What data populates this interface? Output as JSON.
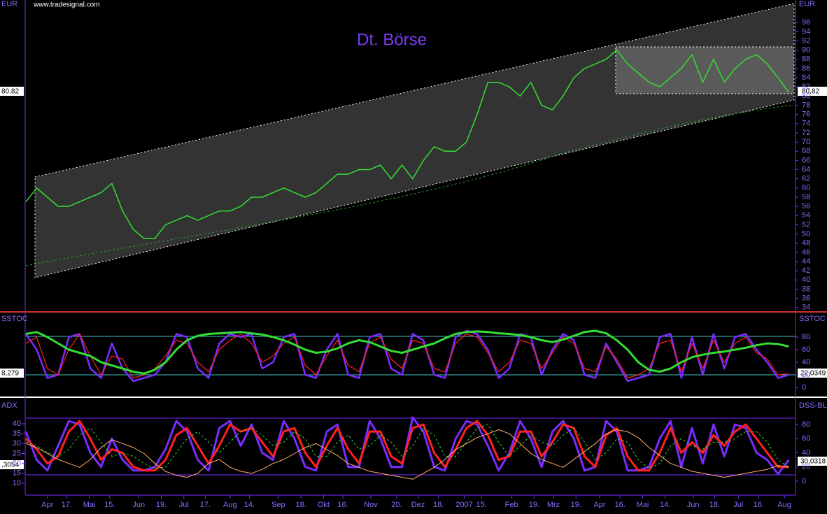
{
  "chart_data": [
    {
      "type": "line",
      "title": "Dt. Börse",
      "source": "www.tradesignal.com",
      "ylabel": "EUR",
      "annotations": [
        "80,82"
      ],
      "x": [
        0,
        1,
        2,
        3,
        4,
        5,
        6,
        7,
        8,
        9,
        10,
        11,
        12,
        13,
        14,
        15,
        16,
        17,
        18,
        19,
        20,
        21,
        22,
        23,
        24,
        25,
        26,
        27,
        28,
        29,
        30,
        31,
        32,
        33,
        34,
        35,
        36,
        37,
        38,
        39,
        40,
        41,
        42,
        43,
        44,
        45,
        46,
        47,
        48,
        49,
        50,
        51,
        52,
        53,
        54,
        55,
        56,
        57,
        58,
        59,
        60,
        61,
        62,
        63,
        64,
        65,
        66,
        67,
        68,
        69,
        70,
        71
      ],
      "xlim": [
        0,
        71.5
      ],
      "xticks": [
        {
          "value": 2.0,
          "label": "Apr"
        },
        {
          "value": 3.8,
          "label": "17."
        },
        {
          "value": 5.9,
          "label": "Mai"
        },
        {
          "value": 7.8,
          "label": "15."
        },
        {
          "value": 10.5,
          "label": "Jun"
        },
        {
          "value": 12.6,
          "label": "19."
        },
        {
          "value": 14.7,
          "label": "Jul"
        },
        {
          "value": 16.7,
          "label": "17."
        },
        {
          "value": 19.0,
          "label": "Aug"
        },
        {
          "value": 20.8,
          "label": "14."
        },
        {
          "value": 23.5,
          "label": "Sep"
        },
        {
          "value": 25.6,
          "label": "18."
        },
        {
          "value": 27.7,
          "label": "Okt"
        },
        {
          "value": 29.5,
          "label": "16."
        },
        {
          "value": 32.1,
          "label": "Nov"
        },
        {
          "value": 34.5,
          "label": "20."
        },
        {
          "value": 36.5,
          "label": "Dez"
        },
        {
          "value": 38.4,
          "label": "18."
        },
        {
          "value": 40.8,
          "label": "2007"
        },
        {
          "value": 42.4,
          "label": "15."
        },
        {
          "value": 45.2,
          "label": "Feb"
        },
        {
          "value": 47.3,
          "label": "19."
        },
        {
          "value": 49.1,
          "label": "Mrz"
        },
        {
          "value": 51.2,
          "label": "19."
        },
        {
          "value": 53.4,
          "label": "Apr"
        },
        {
          "value": 55.3,
          "label": "16."
        },
        {
          "value": 57.4,
          "label": "Mai"
        },
        {
          "value": 59.5,
          "label": "14."
        },
        {
          "value": 62.1,
          "label": "Jun"
        },
        {
          "value": 64.1,
          "label": "18."
        },
        {
          "value": 66.3,
          "label": "Jul"
        },
        {
          "value": 68.2,
          "label": "16."
        },
        {
          "value": 70.6,
          "label": "Aug"
        }
      ],
      "ylim": [
        33.2,
        100.9
      ],
      "yticks": [
        34,
        36,
        38,
        40,
        42,
        44,
        46,
        48,
        50,
        52,
        54,
        56,
        58,
        60,
        62,
        64,
        66,
        68,
        70,
        72,
        74,
        76,
        78,
        80,
        82,
        84,
        86,
        88,
        90,
        92,
        94,
        96
      ],
      "series": [
        {
          "color": "#33dd33",
          "values": [
            57,
            60,
            58,
            56,
            56,
            57,
            58,
            59,
            61,
            55,
            51,
            49,
            49,
            52,
            53,
            54,
            53,
            54,
            55,
            55,
            56,
            58,
            58,
            59,
            60,
            59,
            58,
            59,
            61,
            63,
            63,
            64,
            64,
            65,
            62,
            65,
            62,
            66,
            69,
            68,
            68,
            70,
            76,
            83,
            83,
            82,
            80,
            83,
            78,
            77,
            80,
            84,
            86,
            87,
            88,
            90,
            87,
            85,
            83,
            82,
            84,
            86,
            89,
            83,
            88,
            83,
            86,
            88,
            89,
            87,
            84,
            80.82
          ]
        }
      ]
    },
    {
      "type": "line",
      "ylabel": "SSTOC",
      "annotations": [
        "8,279",
        "22,0349"
      ],
      "ylim": [
        -13.3,
        116.7
      ],
      "yticks": [
        0,
        20,
        40,
        60,
        80
      ],
      "series": [
        {
          "color": "#7a2cff",
          "width": 2.5,
          "values": [
            85,
            60,
            15,
            20,
            80,
            85,
            30,
            15,
            70,
            30,
            10,
            15,
            20,
            40,
            85,
            80,
            30,
            15,
            70,
            85,
            80,
            85,
            30,
            40,
            80,
            85,
            20,
            15,
            60,
            85,
            20,
            15,
            80,
            85,
            30,
            20,
            85,
            75,
            20,
            15,
            80,
            90,
            85,
            60,
            15,
            30,
            85,
            80,
            20,
            60,
            85,
            75,
            20,
            15,
            70,
            40,
            10,
            15,
            20,
            80,
            85,
            15,
            80,
            20,
            85,
            30,
            80,
            85,
            60,
            40,
            15,
            20
          ]
        },
        {
          "color": "#ff2020",
          "width": 1.2,
          "values": [
            70,
            80,
            30,
            20,
            60,
            85,
            50,
            20,
            50,
            45,
            15,
            20,
            30,
            50,
            75,
            70,
            40,
            25,
            60,
            75,
            85,
            70,
            40,
            50,
            70,
            80,
            35,
            20,
            50,
            75,
            35,
            25,
            70,
            80,
            45,
            30,
            75,
            70,
            30,
            25,
            70,
            85,
            80,
            55,
            25,
            40,
            75,
            70,
            30,
            55,
            80,
            70,
            30,
            25,
            65,
            45,
            15,
            20,
            30,
            70,
            75,
            25,
            70,
            30,
            75,
            40,
            70,
            80,
            55,
            45,
            20,
            22
          ]
        },
        {
          "color": "#33dd33",
          "width": 3,
          "values": [
            85,
            88,
            80,
            70,
            60,
            55,
            50,
            40,
            35,
            30,
            25,
            22,
            28,
            40,
            60,
            75,
            82,
            85,
            86,
            87,
            88,
            86,
            84,
            80,
            75,
            68,
            60,
            55,
            57,
            62,
            70,
            75,
            72,
            65,
            58,
            55,
            60,
            65,
            70,
            78,
            85,
            88,
            89,
            88,
            86,
            85,
            83,
            80,
            75,
            72,
            76,
            82,
            88,
            90,
            86,
            75,
            60,
            40,
            28,
            25,
            30,
            40,
            48,
            52,
            55,
            57,
            60,
            63,
            67,
            70,
            69,
            65
          ]
        }
      ]
    },
    {
      "type": "line",
      "ylabel": "ADX",
      "y2label": "DSS-BL",
      "annotations": [
        ",3054",
        "30,0318"
      ],
      "ylim": [
        4,
        52.7
      ],
      "yticks": [
        10,
        15,
        20,
        25,
        30,
        35,
        40
      ],
      "y2lim": [
        -19.8,
        116.6
      ],
      "y2ticks": [
        0,
        20,
        40,
        60,
        80
      ],
      "series": [
        {
          "color": "#7a2cff",
          "width": 3,
          "axis": "y2",
          "values": [
            70,
            30,
            15,
            50,
            85,
            80,
            40,
            20,
            60,
            30,
            15,
            15,
            20,
            45,
            85,
            70,
            30,
            15,
            75,
            85,
            50,
            80,
            40,
            30,
            85,
            60,
            20,
            15,
            70,
            80,
            20,
            20,
            85,
            60,
            20,
            20,
            90,
            70,
            20,
            15,
            60,
            85,
            80,
            50,
            15,
            40,
            85,
            60,
            20,
            70,
            85,
            60,
            15,
            20,
            85,
            70,
            15,
            15,
            20,
            60,
            85,
            20,
            75,
            25,
            80,
            35,
            80,
            75,
            40,
            30,
            10,
            30
          ]
        },
        {
          "color": "#ff2020",
          "width": 3,
          "axis": "y2",
          "values": [
            60,
            45,
            25,
            35,
            70,
            85,
            60,
            30,
            45,
            40,
            20,
            15,
            15,
            30,
            65,
            75,
            50,
            25,
            50,
            80,
            70,
            75,
            55,
            35,
            70,
            75,
            40,
            20,
            50,
            75,
            45,
            25,
            70,
            70,
            35,
            25,
            75,
            80,
            40,
            20,
            45,
            75,
            85,
            65,
            30,
            35,
            70,
            70,
            35,
            55,
            80,
            75,
            35,
            20,
            65,
            75,
            35,
            15,
            15,
            40,
            75,
            40,
            55,
            40,
            65,
            50,
            70,
            80,
            60,
            40,
            20,
            20
          ]
        },
        {
          "color": "#33dd33",
          "width": 1,
          "dashed": true,
          "axis": "y2",
          "values": [
            55,
            50,
            40,
            35,
            45,
            65,
            75,
            55,
            35,
            40,
            35,
            25,
            18,
            20,
            40,
            60,
            70,
            55,
            40,
            55,
            70,
            75,
            65,
            50,
            55,
            70,
            60,
            35,
            35,
            55,
            65,
            45,
            50,
            65,
            55,
            35,
            50,
            75,
            65,
            35,
            35,
            55,
            75,
            80,
            55,
            35,
            50,
            65,
            55,
            50,
            65,
            75,
            55,
            30,
            40,
            60,
            55,
            30,
            18,
            25,
            50,
            60,
            50,
            45,
            55,
            55,
            60,
            70,
            70,
            55,
            30,
            20
          ]
        },
        {
          "color": "#ffb070",
          "width": 1,
          "values": [
            30,
            28,
            25,
            22,
            20,
            18,
            22,
            28,
            32,
            30,
            28,
            25,
            20,
            16,
            14,
            13,
            15,
            20,
            22,
            18,
            16,
            15,
            17,
            20,
            22,
            25,
            28,
            30,
            27,
            24,
            20,
            18,
            16,
            15,
            14,
            13,
            12,
            15,
            18,
            22,
            27,
            30,
            33,
            35,
            37,
            35,
            30,
            25,
            22,
            20,
            18,
            22,
            26,
            30,
            35,
            37,
            36,
            33,
            28,
            24,
            20,
            18,
            16,
            15,
            14,
            13,
            14,
            15,
            16,
            17,
            19,
            18
          ]
        }
      ]
    }
  ]
}
